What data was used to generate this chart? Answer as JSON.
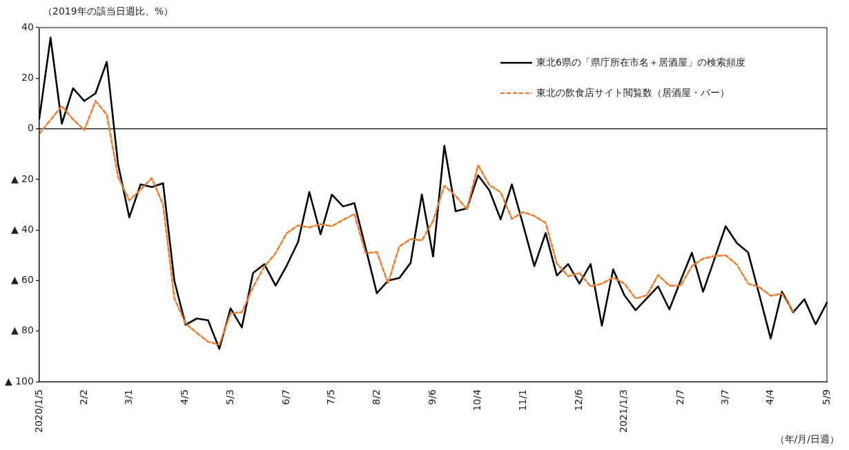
{
  "chart_data": {
    "type": "line",
    "ylabel": "（2019年の該当日週比、%）",
    "xlabel": "（年/月/日週）",
    "categories": [
      "2020/1/5",
      null,
      null,
      null,
      "2/2",
      null,
      null,
      null,
      "3/1",
      null,
      null,
      null,
      null,
      "4/5",
      null,
      null,
      null,
      "5/3",
      null,
      null,
      null,
      null,
      "6/7",
      null,
      null,
      null,
      "7/5",
      null,
      null,
      null,
      "8/2",
      null,
      null,
      null,
      null,
      "9/6",
      null,
      null,
      null,
      "10/4",
      null,
      null,
      null,
      "11/1",
      null,
      null,
      null,
      null,
      "12/6",
      null,
      null,
      null,
      "2021/1/3",
      null,
      null,
      null,
      null,
      "2/7",
      null,
      null,
      null,
      "3/7",
      null,
      null,
      null,
      "4/4",
      null,
      null,
      null,
      null,
      "5/9"
    ],
    "ylim": [
      -100,
      40
    ],
    "yticks": [
      40,
      20,
      0,
      {
        "value": -20,
        "label": "▲ 20"
      },
      {
        "value": -40,
        "label": "▲ 40"
      },
      {
        "value": -60,
        "label": "▲ 60"
      },
      {
        "value": -80,
        "label": "▲ 80"
      },
      {
        "value": -100,
        "label": "▲ 100"
      }
    ],
    "legend": "top right",
    "marker": "none",
    "series": [
      {
        "name": "東北6県の「県庁所在市名＋居酒屋」の検索頻度",
        "color": "#000000",
        "line_style": "solid",
        "values": [
          4,
          36,
          2,
          16,
          11,
          14,
          26.5,
          -14,
          -35,
          -22,
          -23,
          -21.5,
          -60,
          -77.5,
          -75,
          -75.7,
          -87,
          -71,
          -78.5,
          -57,
          -53.5,
          -62,
          -54,
          -44.7,
          -25,
          -41.7,
          -26,
          -30.7,
          -29.4,
          -47,
          -65,
          -60,
          -59,
          -53,
          -26,
          -50.5,
          -6.7,
          -32.6,
          -31.5,
          -18.4,
          -24.3,
          -35.8,
          -22,
          -38,
          -54.3,
          -41.2,
          -58,
          -53.5,
          -61.2,
          -53.5,
          -77.8,
          -55.6,
          -65.8,
          -71.7,
          -67,
          -62.3,
          -71.4,
          -60,
          -49,
          -64.4,
          -51.5,
          -38.5,
          -45.2,
          -48.9,
          -65.8,
          -82.9,
          -64.4,
          -72.5,
          -67.4,
          -77.3,
          -68.7
        ]
      },
      {
        "name": "東北の飲食店サイト閲覧数（居酒屋・バー）",
        "color": "#ed7d31",
        "line_style": "dashed",
        "values": [
          -2,
          3.5,
          9,
          3.7,
          -0.5,
          11,
          5.6,
          -19,
          -28.3,
          -24,
          -19.5,
          -30,
          -67,
          -77,
          -80.7,
          -84.2,
          -85.3,
          -73,
          -72.5,
          -62.6,
          -54.5,
          -49.2,
          -41.2,
          -38.2,
          -39,
          -37.7,
          -38.5,
          -36,
          -33.7,
          -49.2,
          -48.7,
          -61,
          -46.5,
          -43.6,
          -44.1,
          -36.4,
          -22.5,
          -26.5,
          -31.8,
          -14.4,
          -22.2,
          -25.1,
          -35.6,
          -32.9,
          -34.5,
          -37.2,
          -53.2,
          -58.3,
          -57,
          -62.3,
          -61.2,
          -58.8,
          -61.2,
          -67.1,
          -65.8,
          -57.8,
          -62,
          -62,
          -54.3,
          -51.3,
          -50.3,
          -50,
          -53.7,
          -61.2,
          -62.6,
          -66,
          -65.2,
          -72.2,
          null,
          null,
          null
        ]
      }
    ]
  }
}
